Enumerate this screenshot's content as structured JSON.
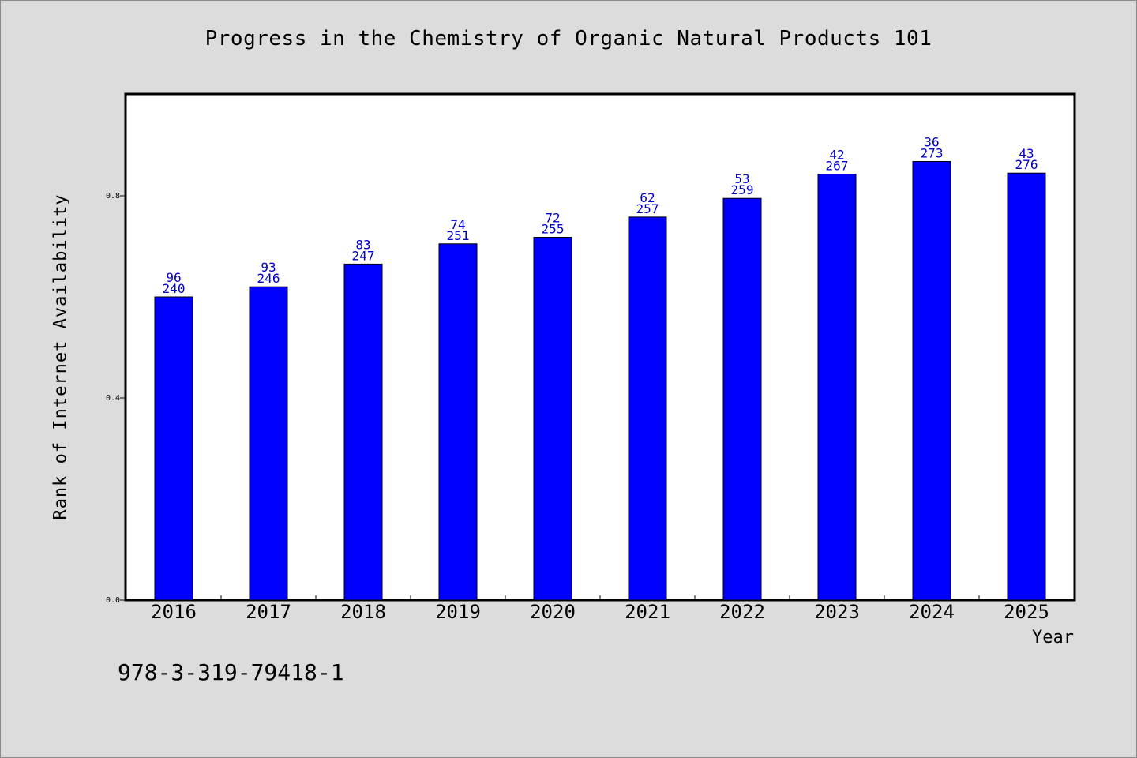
{
  "chart_data": {
    "type": "bar",
    "title": "Progress in the Chemistry of Organic Natural Products 101",
    "xlabel": "Year",
    "ylabel": "Rank of Internet Availability",
    "categories": [
      "2016",
      "2017",
      "2018",
      "2019",
      "2020",
      "2021",
      "2022",
      "2023",
      "2024",
      "2025"
    ],
    "values": [
      0.6,
      0.62,
      0.665,
      0.705,
      0.718,
      0.758,
      0.795,
      0.843,
      0.868,
      0.845
    ],
    "labels_top": [
      "96",
      "93",
      "83",
      "74",
      "72",
      "62",
      "53",
      "42",
      "36",
      "43"
    ],
    "labels_bottom": [
      "240",
      "246",
      "247",
      "251",
      "255",
      "257",
      "259",
      "267",
      "273",
      "276"
    ],
    "yticks": [
      "0.0",
      "0.4",
      "0.8"
    ],
    "ylim": [
      0,
      1.0
    ],
    "grid": false,
    "bar_color": "#0000ff",
    "label_color": "#0000cc"
  },
  "footer": {
    "code": "978-3-319-79418-1"
  }
}
